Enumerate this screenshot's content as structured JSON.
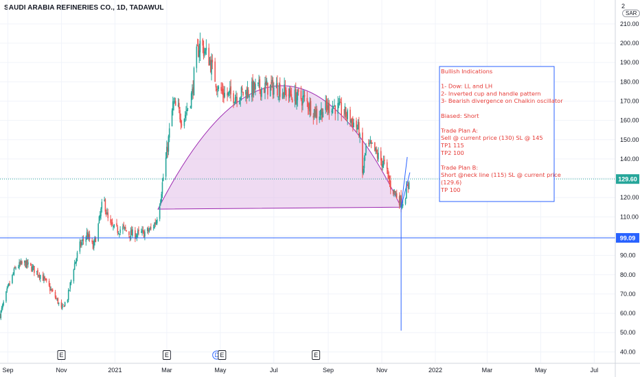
{
  "header": {
    "title": "SAUDI ARABIA REFINERIES CO., 1D, TADAWUL",
    "currency_short": "2",
    "currency_label": "SAR"
  },
  "chart_data": {
    "type": "candlestick",
    "y_axis": {
      "ticks": [
        40,
        50,
        60,
        70,
        80,
        90,
        100,
        110,
        120,
        130,
        140,
        150,
        160,
        170,
        180,
        190,
        200,
        210
      ],
      "tick_labels": [
        "40.00",
        "50.00",
        "60.00",
        "70.00",
        "80.00",
        "90.00",
        "100.00",
        "110.00",
        "120.00",
        "130.00",
        "140.00",
        "150.00",
        "160.00",
        "170.00",
        "180.00",
        "190.00",
        "200.00",
        "210.00"
      ],
      "range": [
        38,
        216
      ]
    },
    "x_axis": {
      "labels": [
        "Sep",
        "Nov",
        "2021",
        "Mar",
        "May",
        "Jul",
        "Sep",
        "Nov",
        "2022",
        "Mar",
        "May",
        "Jul"
      ],
      "label_dates": [
        "2020-09-01",
        "2020-11-01",
        "2021-01-01",
        "2021-03-01",
        "2021-05-01",
        "2021-07-01",
        "2021-09-01",
        "2021-11-01",
        "2022-01-01",
        "2022-03-01",
        "2022-05-01",
        "2022-07-01"
      ],
      "range": [
        "2020-08-23",
        "2022-07-25"
      ]
    },
    "price_line": {
      "value": 129.6,
      "label": "129.60",
      "color": "#26a69a"
    },
    "horizontal_line": {
      "value": 99.09,
      "label": "99.09",
      "color": "#2962ff"
    },
    "events": [
      {
        "date": "2020-11-01",
        "label": "E"
      },
      {
        "date": "2021-03-01",
        "label": "E"
      },
      {
        "date": "2021-04-27",
        "label": "D"
      },
      {
        "date": "2021-05-03",
        "label": "E"
      },
      {
        "date": "2021-08-18",
        "label": "E"
      }
    ],
    "cup": {
      "neckline": [
        [
          "2021-02-19",
          114
        ],
        [
          "2021-11-23",
          115
        ]
      ],
      "apex": [
        "2021-07-10",
        178
      ],
      "fill": "#e1bee7",
      "stroke": "#9c27b0"
    },
    "annotation_lines": [
      {
        "from": [
          "2021-11-23",
          115
        ],
        "to": [
          "2021-11-30",
          141
        ],
        "color": "#2962ff"
      },
      {
        "from": [
          "2021-11-23",
          115
        ],
        "to": [
          "2021-11-23",
          51
        ],
        "color": "#2962ff"
      },
      {
        "from": [
          "2021-11-23",
          115
        ],
        "to": [
          "2021-12-03",
          133
        ],
        "color": "#2962ff"
      }
    ],
    "price_path": [
      [
        "2020-08-23",
        59
      ],
      [
        "2020-09-01",
        73
      ],
      [
        "2020-09-10",
        84
      ],
      [
        "2020-09-20",
        86
      ],
      [
        "2020-09-30",
        83
      ],
      [
        "2020-10-10",
        79
      ],
      [
        "2020-10-20",
        72
      ],
      [
        "2020-10-28",
        66
      ],
      [
        "2020-11-01",
        62
      ],
      [
        "2020-11-08",
        68
      ],
      [
        "2020-11-15",
        84
      ],
      [
        "2020-11-22",
        95
      ],
      [
        "2020-11-30",
        101
      ],
      [
        "2020-12-07",
        94
      ],
      [
        "2020-12-12",
        103
      ],
      [
        "2020-12-19",
        120
      ],
      [
        "2020-12-25",
        106
      ],
      [
        "2021-01-02",
        103
      ],
      [
        "2021-01-10",
        104
      ],
      [
        "2021-01-18",
        101
      ],
      [
        "2021-01-28",
        101
      ],
      [
        "2021-02-06",
        102
      ],
      [
        "2021-02-12",
        104
      ],
      [
        "2021-02-17",
        108
      ],
      [
        "2021-02-22",
        121
      ],
      [
        "2021-03-01",
        143
      ],
      [
        "2021-03-08",
        168
      ],
      [
        "2021-03-14",
        165
      ],
      [
        "2021-03-19",
        160
      ],
      [
        "2021-03-25",
        167
      ],
      [
        "2021-03-30",
        174
      ],
      [
        "2021-04-03",
        192
      ],
      [
        "2021-04-08",
        200
      ],
      [
        "2021-04-13",
        196
      ],
      [
        "2021-04-18",
        192
      ],
      [
        "2021-04-23",
        185
      ],
      [
        "2021-04-29",
        176
      ],
      [
        "2021-05-08",
        173
      ],
      [
        "2021-05-18",
        173
      ],
      [
        "2021-05-27",
        174
      ],
      [
        "2021-06-05",
        176
      ],
      [
        "2021-06-20",
        177
      ],
      [
        "2021-07-05",
        177
      ],
      [
        "2021-07-20",
        173
      ],
      [
        "2021-08-04",
        171
      ],
      [
        "2021-08-14",
        166
      ],
      [
        "2021-08-20",
        163
      ],
      [
        "2021-08-27",
        166
      ],
      [
        "2021-09-06",
        168
      ],
      [
        "2021-09-16",
        165
      ],
      [
        "2021-09-26",
        161
      ],
      [
        "2021-10-06",
        155
      ],
      [
        "2021-10-10",
        132
      ],
      [
        "2021-10-14",
        146
      ],
      [
        "2021-10-21",
        146
      ],
      [
        "2021-10-28",
        141
      ],
      [
        "2021-11-04",
        137
      ],
      [
        "2021-11-11",
        126
      ],
      [
        "2021-11-18",
        121
      ],
      [
        "2021-11-24",
        117
      ],
      [
        "2021-12-01",
        126
      ],
      [
        "2021-12-03",
        129.6
      ]
    ]
  },
  "annotation": {
    "lines": [
      "Bullish Indications",
      "",
      "1- Dow: LL and LH",
      "2- Inverted cup and handle pattern",
      "3- Bearish divergence on Chaikin oscillator",
      "",
      "Biased: Short",
      "",
      "Trade Plan A:",
      "Sell @ current price (130) SL @ 145",
      "TP1 115",
      "TP2 100",
      "",
      "Trade Plan B:",
      "Short @neck line (115) SL @ current price",
      "(129.6)",
      "TP 100"
    ]
  },
  "colors": {
    "up": "#26a69a",
    "down": "#ef5350",
    "axis": "#d1d4dc",
    "text": "#131722",
    "note_text": "#e53935",
    "note_border": "#2962ff",
    "blue": "#2962ff"
  }
}
